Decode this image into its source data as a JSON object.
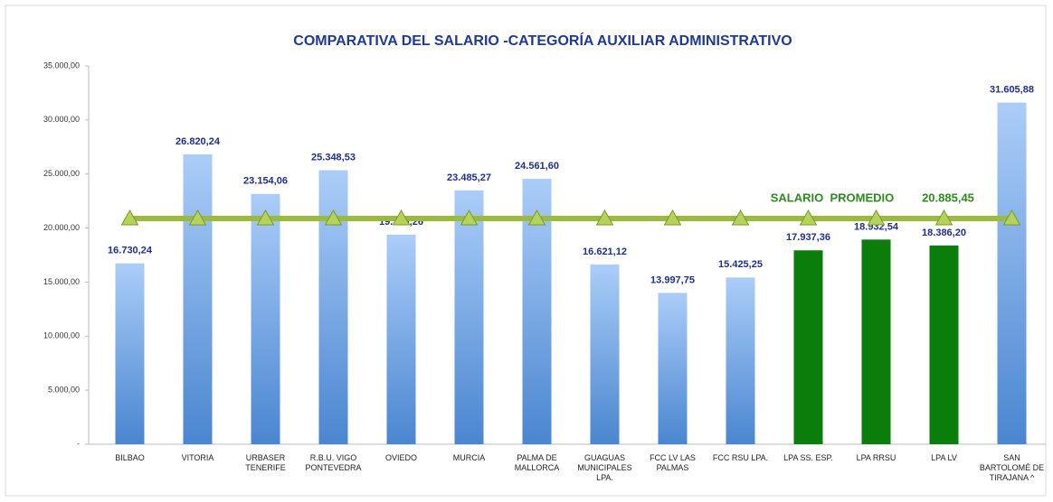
{
  "chart_data": {
    "type": "bar",
    "title": "COMPARATIVA DEL SALARIO -CATEGORÍA AUXILIAR ADMINISTRATIVO",
    "categories": [
      "BILBAO",
      "VITORIA",
      "URBASER TENERIFE",
      "R.B.U. VIGO PONTEVEDRA",
      "OVIEDO",
      "MURCIA",
      "PALMA DE MALLORCA",
      "GUAGUAS MUNICIPALES LPA.",
      "FCC LV LAS PALMAS",
      "FCC RSU LPA.",
      "LPA SS. ESP.",
      "LPA RRSU",
      "LPA LV",
      "SAN BARTOLOMÉ DE TIRAJANA ^"
    ],
    "values": [
      16730.24,
      26820.24,
      23154.06,
      25348.53,
      19390.26,
      23485.27,
      24561.6,
      16621.12,
      13997.75,
      15425.25,
      17937.36,
      18932.54,
      18386.2,
      31605.88
    ],
    "value_labels": [
      "16.730,24",
      "26.820,24",
      "23.154,06",
      "25.348,53",
      "19.390,26",
      "23.485,27",
      "24.561,60",
      "16.621,12",
      "13.997,75",
      "15.425,25",
      "17.937,36",
      "18.932,54",
      "18.386,20",
      "31.605,88"
    ],
    "colors": [
      "#4a86d0",
      "#4a86d0",
      "#4a86d0",
      "#4a86d0",
      "#4a86d0",
      "#4a86d0",
      "#4a86d0",
      "#4a86d0",
      "#4a86d0",
      "#4a86d0",
      "#0b7d0b",
      "#0b7d0b",
      "#0b7d0b",
      "#4a86d0"
    ],
    "average": {
      "label": "SALARIO  PROMEDIO",
      "value": 20885.45,
      "value_label": "20.885,45",
      "color": "#9bbb3c"
    },
    "ylim": [
      0,
      35000
    ],
    "yticks": [
      {
        "value": 0,
        "label": "-"
      },
      {
        "value": 5000,
        "label": "5.000,00"
      },
      {
        "value": 10000,
        "label": "10.000,00"
      },
      {
        "value": 15000,
        "label": "15.000,00"
      },
      {
        "value": 20000,
        "label": "20.000,00"
      },
      {
        "value": 25000,
        "label": "25.000,00"
      },
      {
        "value": 30000,
        "label": "30.000,00"
      },
      {
        "value": 35000,
        "label": "35.000,00"
      }
    ],
    "grid": false
  }
}
